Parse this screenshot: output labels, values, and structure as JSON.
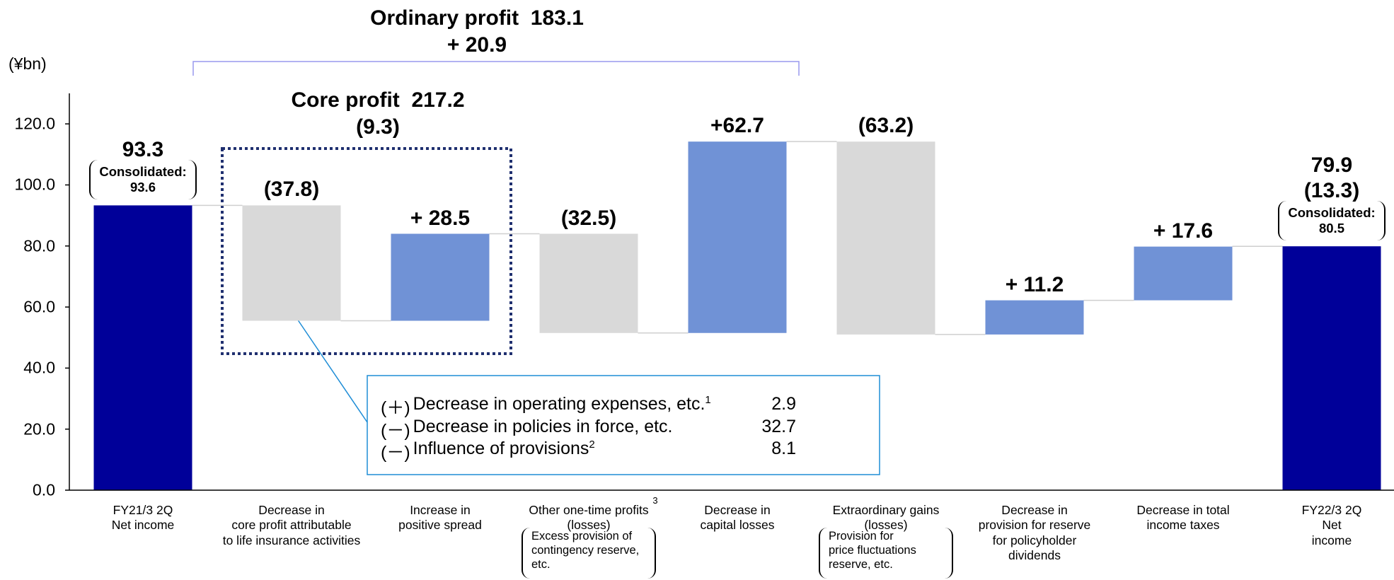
{
  "chart_data": {
    "type": "waterfall",
    "unit": "(¥bn)",
    "categories": [
      "FY21/3 2Q\nNet income",
      "Decrease in\ncore profit attributable\nto life insurance activities",
      "Increase in\npositive spread",
      "Other one-time profits\n(losses)",
      "Decrease in\ncapital losses",
      "Extraordinary gains\n(losses)",
      "Decrease in\nprovision for reserve\nfor policyholder\ndividends",
      "Decrease in total\nincome taxes",
      "FY22/3 2Q\nNet income"
    ],
    "measure": [
      "absolute",
      "relative",
      "relative",
      "relative",
      "relative",
      "relative",
      "relative",
      "relative",
      "absolute"
    ],
    "values": [
      93.3,
      -37.8,
      28.5,
      -32.5,
      62.7,
      -63.2,
      11.2,
      17.6,
      79.9
    ],
    "value_labels": [
      "93.3",
      "(37.8)",
      "+ 28.5",
      "(32.5)",
      "+62.7",
      "(63.2)",
      "+ 11.2",
      "+ 17.6",
      "79.9"
    ],
    "secondary_labels": [
      null,
      null,
      null,
      null,
      null,
      null,
      null,
      null,
      "(13.3)"
    ],
    "consolidated": [
      "Consolidated:\n93.6",
      null,
      null,
      null,
      null,
      null,
      null,
      null,
      "Consolidated:\n80.5"
    ],
    "category_notes": [
      null,
      null,
      null,
      "Excess provision of\ncontingency reserve,\netc.",
      null,
      "Provision for\nprice fluctuations\nreserve, etc.",
      null,
      null,
      null
    ],
    "footnote_marks": [
      null,
      null,
      null,
      "3",
      null,
      null,
      null,
      null,
      null
    ],
    "colors": {
      "total": "#000099",
      "increase": "#7092d6",
      "decrease": "#d9d9d9"
    },
    "ylim": [
      0,
      130
    ],
    "yticks": [
      {
        "value": 0,
        "label": "0.0"
      },
      {
        "value": 20,
        "label": "20.0"
      },
      {
        "value": 40,
        "label": "40.0"
      },
      {
        "value": 60,
        "label": "60.0"
      },
      {
        "value": 80,
        "label": "80.0"
      },
      {
        "value": 100,
        "label": "100.0"
      },
      {
        "value": 120,
        "label": "120.0"
      }
    ],
    "ordinary_profit": {
      "label": "Ordinary profit",
      "value": 183.1,
      "change": "+ 20.9"
    },
    "core_profit": {
      "label": "Core profit",
      "value": 217.2,
      "change": "(9.3)"
    },
    "breakdown": [
      {
        "sign": "(＋)",
        "text": "Decrease in operating expenses, etc.",
        "note": "1",
        "value": 2.9
      },
      {
        "sign": "(－)",
        "text": "Decrease in policies in force, etc.",
        "note": null,
        "value": 32.7
      },
      {
        "sign": "(－)",
        "text": "Influence of provisions",
        "note": "2",
        "value": 8.1
      }
    ]
  }
}
